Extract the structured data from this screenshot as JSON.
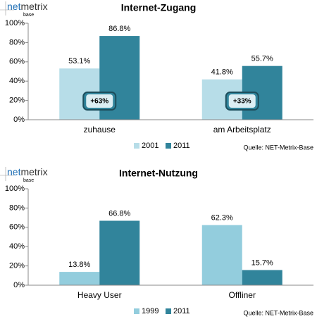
{
  "chart_data": [
    {
      "type": "bar",
      "title": "Internet-Zugang",
      "logo_parts": [
        "net",
        "metrix"
      ],
      "logo_sub": "base",
      "categories": [
        "zuhause",
        "am Arbeitsplatz"
      ],
      "series": [
        {
          "name": "2001",
          "color": "#b7dde8",
          "values": [
            53.1,
            41.8
          ],
          "value_labels": [
            "53.1%",
            "41.8%"
          ]
        },
        {
          "name": "2011",
          "color": "#31849b",
          "values": [
            86.8,
            55.7
          ],
          "value_labels": [
            "86.8%",
            "55.7%"
          ]
        }
      ],
      "annotations": [
        "+63%",
        "+33%"
      ],
      "ylim": [
        0,
        100
      ],
      "yticks": [
        {
          "value": 0,
          "label": "0%"
        },
        {
          "value": 20,
          "label": "20%"
        },
        {
          "value": 40,
          "label": "40%"
        },
        {
          "value": 60,
          "label": "60%"
        },
        {
          "value": 80,
          "label": "80%"
        },
        {
          "value": 100,
          "label": "100%"
        }
      ],
      "grid": false,
      "source": "Quelle: NET-Metrix-Base"
    },
    {
      "type": "bar",
      "title": "Internet-Nutzung",
      "logo_parts": [
        "net",
        "metrix"
      ],
      "logo_sub": "base",
      "categories": [
        "Heavy User",
        "Offliner"
      ],
      "series": [
        {
          "name": "1999",
          "color": "#93cddd",
          "values": [
            13.8,
            62.3
          ],
          "value_labels": [
            "13.8%",
            "62.3%"
          ]
        },
        {
          "name": "2011",
          "color": "#31849b",
          "values": [
            66.8,
            15.7
          ],
          "value_labels": [
            "66.8%",
            "15.7%"
          ]
        }
      ],
      "ylim": [
        0,
        100
      ],
      "yticks": [
        {
          "value": 0,
          "label": "0%"
        },
        {
          "value": 20,
          "label": "20%"
        },
        {
          "value": 40,
          "label": "40%"
        },
        {
          "value": 60,
          "label": "60%"
        },
        {
          "value": 80,
          "label": "80%"
        },
        {
          "value": 100,
          "label": "100%"
        }
      ],
      "grid": false,
      "source": "Quelle: NET-Metrix-Base"
    }
  ]
}
